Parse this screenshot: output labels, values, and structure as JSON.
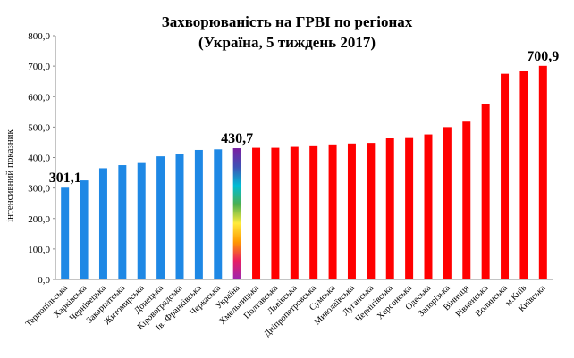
{
  "chart_data": {
    "type": "bar",
    "title": "Захворюваність на  ГРВІ по регіонах",
    "subtitle": "(Україна, 5 тиждень 2017)",
    "ylabel": "інтенсивний показник",
    "xlabel": "",
    "ylim": [
      0,
      800
    ],
    "yticks": [
      "0,0",
      "100,0",
      "200,0",
      "300,0",
      "400,0",
      "500,0",
      "600,0",
      "700,0",
      "800,0"
    ],
    "grid": false,
    "legend": "none",
    "categories": [
      "Тернопільська",
      "Харківська",
      "Чернівецька",
      "Закарпатська",
      "Житомирська",
      "Донецька",
      "Кіровоградська",
      "Ів.-Франківська",
      "Черкаська",
      "Україна",
      "Хмельницька",
      "Полтавська",
      "Львівська",
      "Дніпропетровська",
      "Сумська",
      "Миколаївська",
      "Луганська",
      "Чернігівська",
      "Херсонська",
      "Одеська",
      "Запорізька",
      "Вінниця",
      "Рівненська",
      "Волинська",
      "м.Київ",
      "Київська"
    ],
    "values": [
      301.1,
      325,
      365,
      375,
      382,
      404,
      412,
      425,
      427,
      430.7,
      432,
      432,
      435,
      440,
      443,
      446,
      448,
      463,
      464,
      476,
      500,
      518,
      575,
      675,
      685,
      700.9
    ],
    "groups": [
      "below",
      "below",
      "below",
      "below",
      "below",
      "below",
      "below",
      "below",
      "below",
      "ukraine",
      "above",
      "above",
      "above",
      "above",
      "above",
      "above",
      "above",
      "above",
      "above",
      "above",
      "above",
      "above",
      "above",
      "above",
      "above",
      "above"
    ],
    "data_labels": [
      {
        "index": 0,
        "text": "301,1"
      },
      {
        "index": 9,
        "text": "430,7"
      },
      {
        "index": 25,
        "text": "700,9"
      }
    ],
    "colors": {
      "below": "#1e88e5",
      "above": "#ff0000",
      "ukraine_gradient": [
        "#7b1fa2",
        "#3f51b5",
        "#00bcd4",
        "#4caf50",
        "#ffeb3b",
        "#ff9800",
        "#e91e63",
        "#9c27b0"
      ],
      "axis": "#888888"
    }
  }
}
